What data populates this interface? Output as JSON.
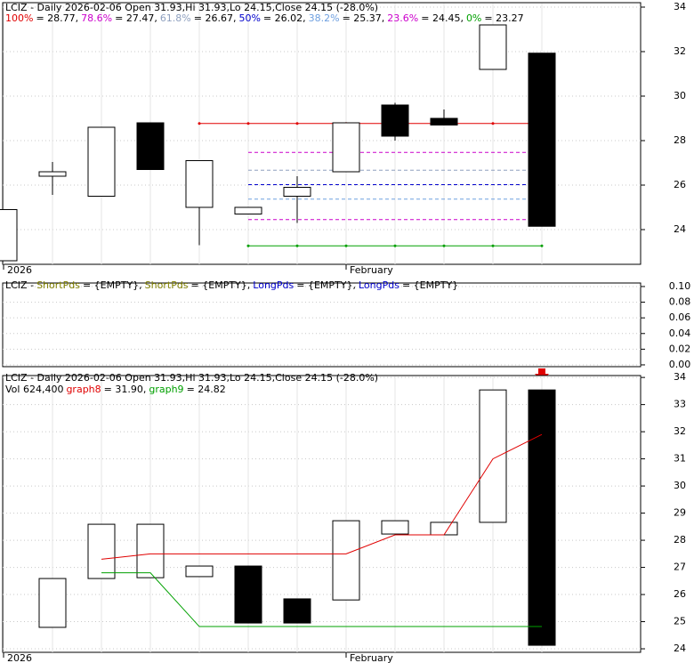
{
  "chart_data": [
    {
      "type": "candlestick",
      "title": "LCIZ - Daily 2026-02-06 Open 31.93,Hi 31.93,Lo 24.15,Close 24.15 (-28.0%)",
      "categories": [
        "2026",
        null,
        null,
        null,
        null,
        null,
        null,
        "February",
        null,
        null,
        null,
        null
      ],
      "open": [
        22.6,
        26.4,
        25.5,
        28.8,
        25.0,
        24.7,
        25.5,
        26.6,
        29.6,
        29.0,
        31.2,
        31.93
      ],
      "high": [
        24.9,
        27.04,
        28.6,
        28.8,
        27.1,
        25.0,
        26.4,
        28.8,
        29.7,
        29.4,
        33.2,
        31.93
      ],
      "low": [
        22.6,
        25.56,
        25.5,
        26.7,
        23.3,
        24.7,
        24.3,
        26.6,
        28.0,
        28.7,
        31.2,
        24.15
      ],
      "close": [
        24.9,
        26.6,
        28.6,
        26.7,
        27.1,
        25.0,
        25.9,
        28.8,
        28.2,
        28.7,
        33.2,
        24.15
      ],
      "up_color": "#ffffff",
      "down_color": "#000000",
      "fib_levels": [
        {
          "name": "100%",
          "label": "= 28.77,",
          "value": 28.77,
          "color": "#e00000"
        },
        {
          "name": "78.6%",
          "label": "= 27.47,",
          "value": 27.47,
          "color": "#cc00cc"
        },
        {
          "name": "61.8%",
          "label": "= 26.67,",
          "value": 26.67,
          "color": "#8fa0bf"
        },
        {
          "name": "50%",
          "label": "= 26.02,",
          "value": 26.02,
          "color": "#0000cc"
        },
        {
          "name": "38.2%",
          "label": "= 25.37,",
          "value": 25.37,
          "color": "#6fa0e0"
        },
        {
          "name": "23.6%",
          "label": "= 24.45,",
          "value": 24.45,
          "color": "#cc00cc"
        },
        {
          "name": "0%",
          "label": "= 23.27",
          "value": 23.27,
          "color": "#00a000"
        }
      ],
      "ylim": [
        22.44,
        34.2
      ],
      "yticks": [
        24,
        26,
        28,
        30,
        32,
        34
      ],
      "grid": true
    },
    {
      "type": "indicator",
      "title": "LCIZ -",
      "legend": [
        {
          "name": "ShortPds",
          "label": "= {EMPTY},",
          "color": "#808000"
        },
        {
          "name": "ShortPds",
          "label": "= {EMPTY},",
          "color": "#808000"
        },
        {
          "name": "LongPds",
          "label": "= {EMPTY},",
          "color": "#0000cc"
        },
        {
          "name": "LongPds",
          "label": "= {EMPTY}",
          "color": "#0000cc"
        }
      ],
      "ylim": [
        -0.0023,
        0.1045
      ],
      "yticks": [
        {
          "value": 0,
          "label": "0.00"
        },
        0.02,
        0.04,
        0.06,
        0.08,
        {
          "value": 0.1,
          "label": "0.10"
        }
      ],
      "grid": true
    },
    {
      "type": "box",
      "title": "LCIZ - Daily 2026-02-06 Open 31.93,Hi 31.93,Lo 24.15,Close 24.15 (-28.0%)",
      "subtitle": "Vol 624,400",
      "categories": [
        "2026",
        null,
        null,
        null,
        null,
        null,
        null,
        "February",
        null,
        null,
        null,
        null
      ],
      "open": [
        null,
        24.79,
        26.59,
        26.62,
        26.66,
        27.05,
        25.84,
        25.8,
        28.23,
        28.2,
        28.66,
        33.54
      ],
      "close": [
        null,
        26.59,
        28.59,
        28.59,
        27.05,
        24.95,
        24.95,
        28.72,
        28.72,
        28.66,
        33.54,
        24.13
      ],
      "up_color": "#ffffff",
      "down_color": "#000000",
      "series": [
        {
          "name": "graph8",
          "label": "= 31.90,",
          "color": "#e00000",
          "values": [
            null,
            null,
            27.3,
            27.5,
            27.5,
            27.5,
            27.5,
            27.5,
            28.2,
            28.2,
            31.0,
            31.9
          ]
        },
        {
          "name": "graph9",
          "label": "= 24.82",
          "color": "#00a000",
          "values": [
            null,
            null,
            26.8,
            26.8,
            24.82,
            24.82,
            24.82,
            24.82,
            24.82,
            24.82,
            24.82,
            24.82
          ]
        }
      ],
      "ylim": [
        23.87,
        34.07
      ],
      "yticks": [
        24,
        25,
        26,
        27,
        28,
        29,
        30,
        31,
        32,
        33,
        34
      ],
      "grid": true
    }
  ]
}
